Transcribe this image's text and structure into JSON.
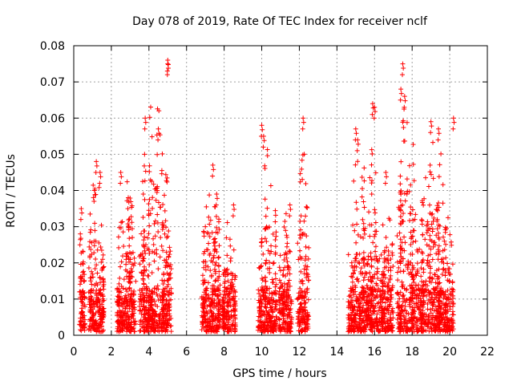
{
  "chart_data": {
    "type": "scatter",
    "title": "Day 078 of 2019, Rate Of TEC Index for receiver nclf",
    "xlabel": "GPS time / hours",
    "ylabel": "ROTI / TECUs",
    "xlim": [
      0,
      22
    ],
    "ylim": [
      0,
      0.08
    ],
    "xticks": [
      0,
      2,
      4,
      6,
      8,
      10,
      12,
      14,
      16,
      18,
      20,
      22
    ],
    "yticks": [
      0,
      0.01,
      0.02,
      0.03,
      0.04,
      0.05,
      0.06,
      0.07,
      0.08
    ],
    "xtick_labels": [
      "0",
      "2",
      "4",
      "6",
      "8",
      "10",
      "12",
      "14",
      "16",
      "18",
      "20",
      "22"
    ],
    "ytick_labels": [
      "0",
      "0.01",
      "0.02",
      "0.03",
      "0.04",
      "0.05",
      "0.06",
      "0.07",
      "0.08"
    ],
    "grid": true,
    "marker": "+",
    "color": "#ff0000",
    "clusters": [
      {
        "x_start": 0.3,
        "x_end": 0.6,
        "y_max": 0.036,
        "peaks": [
          [
            0.4,
            0.035
          ],
          [
            0.35,
            0.028
          ]
        ]
      },
      {
        "x_start": 0.8,
        "x_end": 1.6,
        "y_max": 0.05,
        "peaks": [
          [
            1.2,
            0.048
          ],
          [
            1.4,
            0.045
          ],
          [
            1.1,
            0.04
          ]
        ]
      },
      {
        "x_start": 2.3,
        "x_end": 3.3,
        "y_max": 0.046,
        "peaks": [
          [
            2.5,
            0.045
          ],
          [
            2.9,
            0.038
          ]
        ]
      },
      {
        "x_start": 3.5,
        "x_end": 5.2,
        "y_max": 0.076,
        "peaks": [
          [
            3.8,
            0.06
          ],
          [
            4.5,
            0.057
          ],
          [
            5.0,
            0.076
          ],
          [
            5.0,
            0.075
          ]
        ]
      },
      {
        "x_start": 6.8,
        "x_end": 7.8,
        "y_max": 0.047,
        "peaks": [
          [
            7.4,
            0.047
          ],
          [
            7.6,
            0.039
          ]
        ]
      },
      {
        "x_start": 7.9,
        "x_end": 8.6,
        "y_max": 0.037,
        "peaks": [
          [
            8.5,
            0.036
          ]
        ]
      },
      {
        "x_start": 9.8,
        "x_end": 10.8,
        "y_max": 0.058,
        "peaks": [
          [
            10.0,
            0.058
          ],
          [
            10.1,
            0.055
          ]
        ]
      },
      {
        "x_start": 10.9,
        "x_end": 11.6,
        "y_max": 0.036,
        "peaks": [
          [
            11.5,
            0.036
          ]
        ]
      },
      {
        "x_start": 11.9,
        "x_end": 12.5,
        "y_max": 0.06,
        "peaks": [
          [
            12.2,
            0.06
          ]
        ]
      },
      {
        "x_start": 14.6,
        "x_end": 15.6,
        "y_max": 0.057,
        "peaks": [
          [
            15.0,
            0.057
          ],
          [
            15.1,
            0.054
          ]
        ]
      },
      {
        "x_start": 15.6,
        "x_end": 16.3,
        "y_max": 0.064,
        "peaks": [
          [
            15.9,
            0.064
          ],
          [
            16.0,
            0.063
          ]
        ]
      },
      {
        "x_start": 16.3,
        "x_end": 17.0,
        "y_max": 0.045,
        "peaks": [
          [
            16.6,
            0.045
          ]
        ]
      },
      {
        "x_start": 17.2,
        "x_end": 18.3,
        "y_max": 0.075,
        "peaks": [
          [
            17.5,
            0.075
          ],
          [
            17.4,
            0.068
          ],
          [
            17.6,
            0.066
          ]
        ]
      },
      {
        "x_start": 18.3,
        "x_end": 20.2,
        "y_max": 0.06,
        "peaks": [
          [
            19.0,
            0.059
          ],
          [
            19.4,
            0.057
          ],
          [
            20.2,
            0.06
          ]
        ]
      }
    ]
  }
}
